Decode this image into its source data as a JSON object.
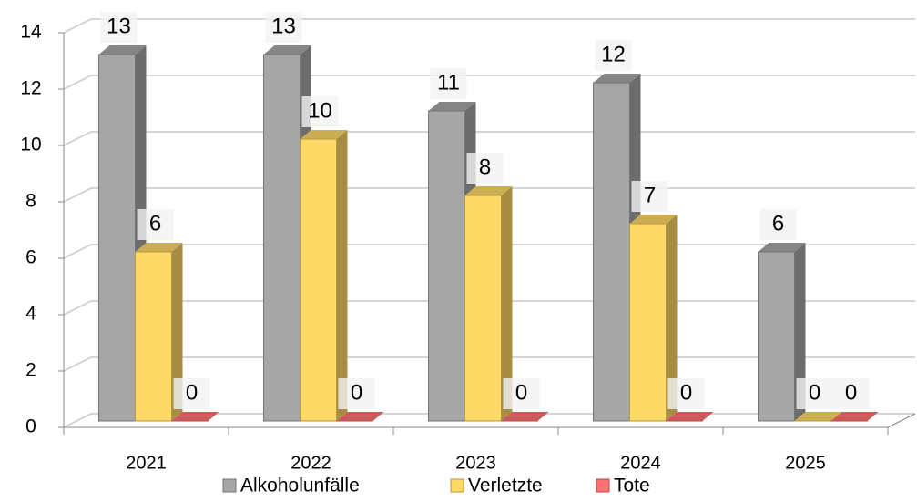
{
  "chart_data": {
    "type": "bar3d",
    "categories": [
      "2021",
      "2022",
      "2023",
      "2024",
      "2025"
    ],
    "series": [
      {
        "name": "Alkoholunfälle",
        "color": "#a6a6a6",
        "values": [
          13,
          13,
          11,
          12,
          6
        ]
      },
      {
        "name": "Verletzte",
        "color": "#ffd966",
        "values": [
          6,
          10,
          8,
          7,
          0
        ]
      },
      {
        "name": "Tote",
        "color": "#ff7070",
        "values": [
          0,
          0,
          0,
          0,
          0
        ]
      }
    ],
    "ylim": [
      0,
      14
    ],
    "yticks": [
      0,
      2,
      4,
      6,
      8,
      10,
      12,
      14
    ],
    "grid": true,
    "legend": "bottom"
  }
}
